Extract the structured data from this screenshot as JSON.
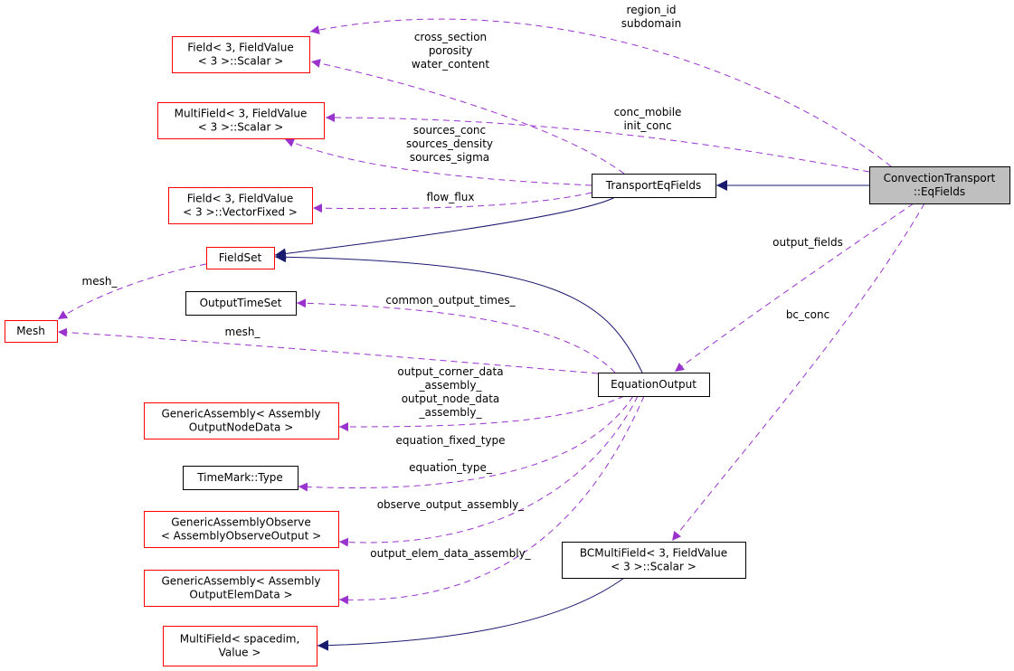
{
  "colors": {
    "incomplete_node_border": "#ff0000",
    "node_border": "#000000",
    "focus_node_fill": "#bfbfbf",
    "usage_edge": "#9a32cd",
    "inheritance_edge": "#191970"
  },
  "nodes": [
    {
      "id": "conv",
      "lines": [
        "ConvectionTransport",
        "::EqFields"
      ],
      "style": "focus"
    },
    {
      "id": "transport",
      "lines": [
        "TransportEqFields"
      ],
      "style": "normal"
    },
    {
      "id": "field_scalar",
      "lines": [
        "Field< 3, FieldValue",
        "< 3 >::Scalar >"
      ],
      "style": "incomplete"
    },
    {
      "id": "multifield_scalar",
      "lines": [
        "MultiField< 3, FieldValue",
        "< 3 >::Scalar >"
      ],
      "style": "incomplete"
    },
    {
      "id": "field_vector",
      "lines": [
        "Field< 3, FieldValue",
        "< 3 >::VectorFixed >"
      ],
      "style": "incomplete"
    },
    {
      "id": "fieldset",
      "lines": [
        "FieldSet"
      ],
      "style": "incomplete"
    },
    {
      "id": "mesh",
      "lines": [
        "Mesh"
      ],
      "style": "incomplete"
    },
    {
      "id": "outputtimeset",
      "lines": [
        "OutputTimeSet"
      ],
      "style": "normal"
    },
    {
      "id": "equation_output",
      "lines": [
        "EquationOutput"
      ],
      "style": "normal"
    },
    {
      "id": "generic_node",
      "lines": [
        "GenericAssembly< Assembly",
        "OutputNodeData >"
      ],
      "style": "incomplete"
    },
    {
      "id": "timemark",
      "lines": [
        "TimeMark::Type"
      ],
      "style": "normal"
    },
    {
      "id": "generic_observe",
      "lines": [
        "GenericAssemblyObserve",
        "< AssemblyObserveOutput >"
      ],
      "style": "incomplete"
    },
    {
      "id": "generic_elem",
      "lines": [
        "GenericAssembly< Assembly",
        "OutputElemData >"
      ],
      "style": "incomplete"
    },
    {
      "id": "bcmulti",
      "lines": [
        "BCMultiField< 3, FieldValue",
        "< 3 >::Scalar >"
      ],
      "style": "normal"
    },
    {
      "id": "multifield_spacedim",
      "lines": [
        "MultiField< spacedim,",
        "Value >"
      ],
      "style": "incomplete"
    }
  ],
  "edges": [
    {
      "from": "conv",
      "to": "field_scalar",
      "kind": "usage",
      "labels": [
        "region_id",
        "subdomain"
      ]
    },
    {
      "from": "transport",
      "to": "field_scalar",
      "kind": "usage",
      "labels": [
        "cross_section",
        "porosity",
        "water_content"
      ]
    },
    {
      "from": "conv",
      "to": "multifield_scalar",
      "kind": "usage",
      "labels": [
        "conc_mobile",
        "init_conc"
      ]
    },
    {
      "from": "transport",
      "to": "multifield_scalar",
      "kind": "usage",
      "labels": [
        "sources_conc",
        "sources_density",
        "sources_sigma"
      ]
    },
    {
      "from": "transport",
      "to": "field_vector",
      "kind": "usage",
      "labels": [
        "flow_flux"
      ]
    },
    {
      "from": "transport",
      "to": "fieldset",
      "kind": "inheritance",
      "labels": []
    },
    {
      "from": "equation_output",
      "to": "fieldset",
      "kind": "inheritance",
      "labels": []
    },
    {
      "from": "conv",
      "to": "transport",
      "kind": "inheritance",
      "labels": []
    },
    {
      "from": "conv",
      "to": "equation_output",
      "kind": "usage",
      "labels": [
        "output_fields"
      ]
    },
    {
      "from": "conv",
      "to": "bcmulti",
      "kind": "usage",
      "labels": [
        "bc_conc"
      ]
    },
    {
      "from": "fieldset",
      "to": "mesh",
      "kind": "usage",
      "labels": [
        "mesh_"
      ]
    },
    {
      "from": "equation_output",
      "to": "outputtimeset",
      "kind": "usage",
      "labels": [
        "common_output_times_"
      ]
    },
    {
      "from": "equation_output",
      "to": "mesh",
      "kind": "usage",
      "labels": [
        "mesh_"
      ]
    },
    {
      "from": "equation_output",
      "to": "generic_node",
      "kind": "usage",
      "labels": [
        "output_corner_data",
        "_assembly_",
        "output_node_data",
        "_assembly_"
      ]
    },
    {
      "from": "equation_output",
      "to": "timemark",
      "kind": "usage",
      "labels": [
        "equation_fixed_type",
        "_",
        "equation_type_"
      ]
    },
    {
      "from": "equation_output",
      "to": "generic_observe",
      "kind": "usage",
      "labels": [
        "observe_output_assembly_"
      ]
    },
    {
      "from": "equation_output",
      "to": "generic_elem",
      "kind": "usage",
      "labels": [
        "output_elem_data_assembly_"
      ]
    },
    {
      "from": "bcmulti",
      "to": "multifield_spacedim",
      "kind": "inheritance",
      "labels": []
    }
  ]
}
